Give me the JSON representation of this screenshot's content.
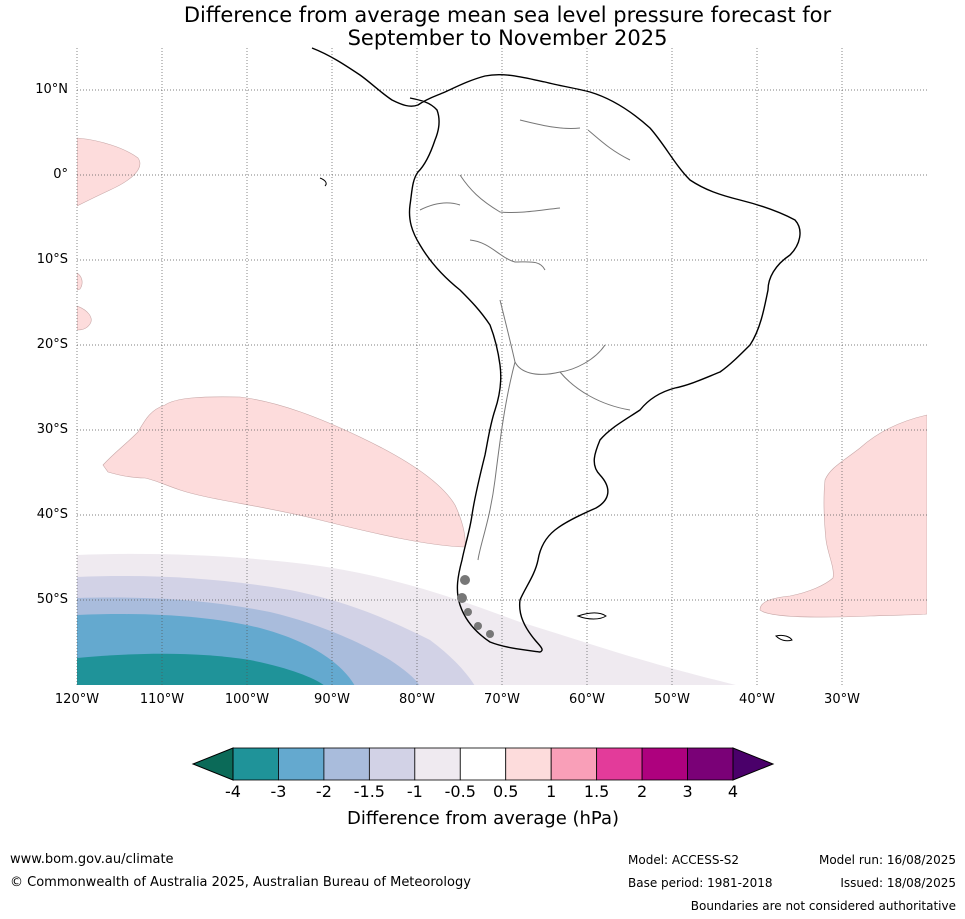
{
  "title_line1": "Difference from average mean sea level pressure forecast for",
  "title_line2": "September to November 2025",
  "lat_labels": [
    "10°N",
    "0°",
    "10°S",
    "20°S",
    "30°S",
    "40°S",
    "50°S"
  ],
  "lon_labels": [
    "120°W",
    "110°W",
    "100°W",
    "90°W",
    "80°W",
    "70°W",
    "60°W",
    "50°W",
    "40°W",
    "30°W"
  ],
  "colorbar": {
    "title": "Difference from average (hPa)",
    "tick_labels": [
      "-4",
      "-3",
      "-2",
      "-1.5",
      "-1",
      "-0.5",
      "0.5",
      "1",
      "1.5",
      "2",
      "3",
      "4"
    ],
    "colors": [
      "#1f9399",
      "#64a9cf",
      "#a9bcdc",
      "#d2d2e6",
      "#efeaf0",
      "#ffffff",
      "#fddcdc",
      "#f99fb8",
      "#e33b9a",
      "#ae017e",
      "#7a0177"
    ],
    "under_color": "#0b6a58",
    "over_color": "#4a006a"
  },
  "footer": {
    "website": "www.bom.gov.au/climate",
    "copyright": "© Commonwealth of Australia 2025, Australian Bureau of Meteorology",
    "model": "Model: ACCESS-S2",
    "base_period": "Base period: 1981-2018",
    "model_run": "Model run: 16/08/2025",
    "issued": "Issued: 18/08/2025",
    "disclaimer": "Boundaries are not considered authoritative"
  }
}
